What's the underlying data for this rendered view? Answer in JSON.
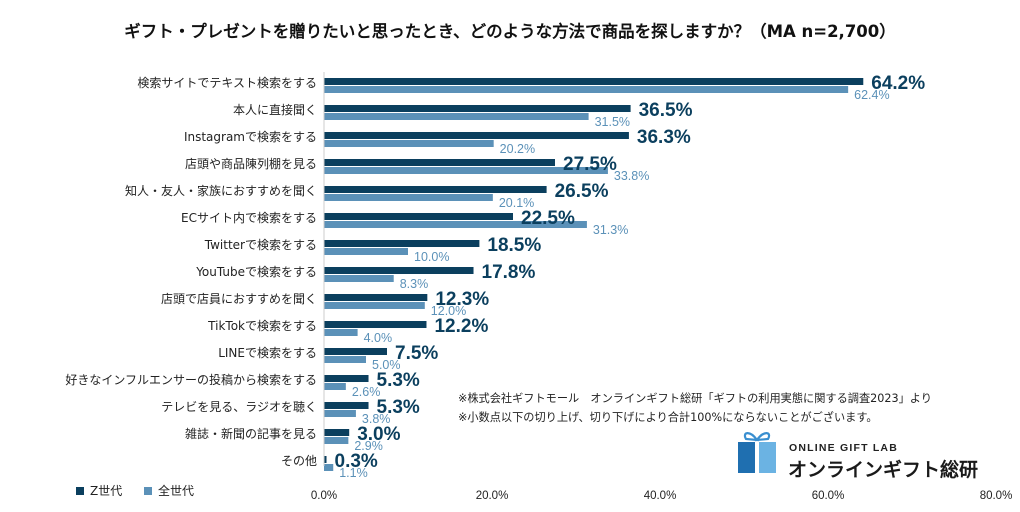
{
  "chart_data": {
    "type": "bar",
    "orientation": "horizontal",
    "title": "ギフト・プレゼントを贈りたいと思ったとき、どのような方法で商品を探しますか？（MA n=2,700）",
    "categories": [
      "検索サイトでテキスト検索をする",
      "本人に直接聞く",
      "Instagramで検索をする",
      "店頭や商品陳列棚を見る",
      "知人・友人・家族におすすめを聞く",
      "ECサイト内で検索をする",
      "Twitterで検索をする",
      "YouTubeで検索をする",
      "店頭で店員におすすめを聞く",
      "TikTokで検索をする",
      "LINEで検索をする",
      "好きなインフルエンサーの投稿から検索をする",
      "テレビを見る、ラジオを聴く",
      "雑誌・新聞の記事を見る",
      "その他"
    ],
    "series": [
      {
        "name": "Z世代",
        "color": "#0b3f5e",
        "values": [
          64.2,
          36.5,
          36.3,
          27.5,
          26.5,
          22.5,
          18.5,
          17.8,
          12.3,
          12.2,
          7.5,
          5.3,
          5.3,
          3.0,
          0.3
        ],
        "labels": [
          "64.2%",
          "36.5%",
          "36.3%",
          "27.5%",
          "26.5%",
          "22.5%",
          "18.5%",
          "17.8%",
          "12.3%",
          "12.2%",
          "7.5%",
          "5.3%",
          "5.3%",
          "3.0%",
          "0.3%"
        ]
      },
      {
        "name": "全世代",
        "color": "#5b91b8",
        "values": [
          62.4,
          31.5,
          20.2,
          33.8,
          20.1,
          31.3,
          10.0,
          8.3,
          12.0,
          4.0,
          5.0,
          2.6,
          3.8,
          2.9,
          1.1
        ],
        "labels": [
          "62.4%",
          "31.5%",
          "20.2%",
          "33.8%",
          "20.1%",
          "31.3%",
          "10.0%",
          "8.3%",
          "12.0%",
          "4.0%",
          "5.0%",
          "2.6%",
          "3.8%",
          "2.9%",
          "1.1%"
        ]
      }
    ],
    "xlim": [
      0,
      80
    ],
    "xticks": [
      0,
      20,
      40,
      60,
      80
    ],
    "xtick_labels": [
      "0.0%",
      "20.0%",
      "40.0%",
      "60.0%",
      "80.0%"
    ],
    "legend_position": "bottom-left"
  },
  "notes": {
    "line1": "※株式会社ギフトモール　オンラインギフト総研「ギフトの利用実態に関する調査2023」より",
    "line2": "※小数点以下の切り上げ、切り下げにより合計100%にならないことがございます。"
  },
  "logo": {
    "top_text": "ONLINE GIFT LAB",
    "main_text": "オンラインギフト総研",
    "color": "#3a8fd0"
  }
}
